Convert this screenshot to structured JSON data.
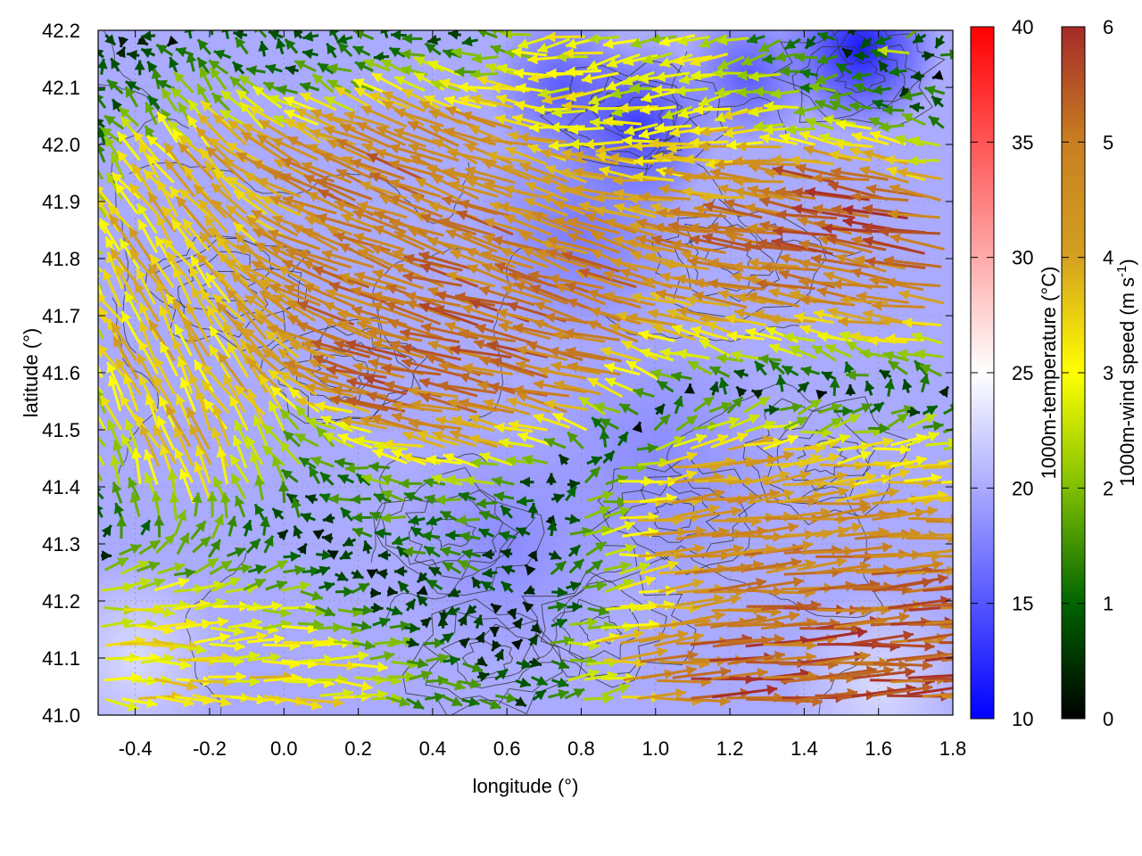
{
  "chart_data": {
    "type": "vector-field",
    "xlabel": "longitude (°)",
    "ylabel": "latitude (°)",
    "xlim": [
      -0.5,
      1.8
    ],
    "ylim": [
      41.0,
      42.2
    ],
    "xticks": [
      -0.4,
      -0.2,
      0.0,
      0.2,
      0.4,
      0.6,
      0.8,
      1.0,
      1.2,
      1.4,
      1.6,
      1.8
    ],
    "xtick_labels": [
      "-0.4",
      "-0.2",
      "0.0",
      "0.2",
      "0.4",
      "0.6",
      "0.8",
      "1.0",
      "1.2",
      "1.4",
      "1.6",
      "1.8"
    ],
    "yticks": [
      41.0,
      41.1,
      41.2,
      41.3,
      41.4,
      41.5,
      41.6,
      41.7,
      41.8,
      41.9,
      42.0,
      42.1,
      42.2
    ],
    "ytick_labels": [
      "41.0",
      "41.1",
      "41.2",
      "41.3",
      "41.4",
      "41.5",
      "41.6",
      "41.7",
      "41.8",
      "41.9",
      "42.0",
      "42.1",
      "42.2"
    ],
    "grid": true,
    "colorbars": [
      {
        "label": "1000m-temperature (°C)",
        "range": [
          10,
          40
        ],
        "ticks": [
          10,
          15,
          20,
          25,
          30,
          35,
          40
        ],
        "tick_labels": [
          "10",
          "15",
          "20",
          "25",
          "30",
          "35",
          "40"
        ],
        "colors": [
          "#0000ff",
          "#ffffff",
          "#ff0000"
        ]
      },
      {
        "label": "1000m-wind speed (m s",
        "label_sup": "-1",
        "label_tail": ")",
        "range": [
          0,
          6
        ],
        "ticks": [
          0,
          1,
          2,
          3,
          4,
          5,
          6
        ],
        "tick_labels": [
          "0",
          "1",
          "2",
          "3",
          "4",
          "5",
          "6"
        ],
        "colors": [
          "#000000",
          "#006400",
          "#7fbf00",
          "#ffff00",
          "#d4a020",
          "#c87f20",
          "#a52a2a"
        ]
      }
    ],
    "temperature_field": [
      {
        "lon": 1.55,
        "lat": 42.17,
        "value": 11,
        "spread": 0.22
      },
      {
        "lon": 0.95,
        "lat": 42.03,
        "value": 13,
        "spread": 0.22
      },
      {
        "lon": 0.75,
        "lat": 42.1,
        "value": 15,
        "spread": 0.2
      },
      {
        "lon": 1.25,
        "lat": 42.12,
        "value": 15,
        "spread": 0.18
      },
      {
        "lon": 0.8,
        "lat": 41.85,
        "value": 17,
        "spread": 0.3
      },
      {
        "lon": 1.0,
        "lat": 41.45,
        "value": 18,
        "spread": 0.35
      },
      {
        "lon": 0.6,
        "lat": 41.3,
        "value": 18,
        "spread": 0.3
      },
      {
        "lon": -0.4,
        "lat": 41.1,
        "value": 23,
        "spread": 0.25
      },
      {
        "lon": 1.6,
        "lat": 41.05,
        "value": 23,
        "spread": 0.25
      }
    ],
    "background_temperature": 20,
    "wind_regions": [
      {
        "lon": [
          -0.5,
          0.2
        ],
        "lat": [
          41.0,
          41.2
        ],
        "u": 3.5,
        "v": -0.3
      },
      {
        "lon": [
          0.0,
          0.9
        ],
        "lat": [
          41.7,
          42.0
        ],
        "u": -4.5,
        "v": 1.8
      },
      {
        "lon": [
          0.3,
          0.8
        ],
        "lat": [
          41.55,
          41.7
        ],
        "u": -5.2,
        "v": 1.0
      },
      {
        "lon": [
          -0.4,
          -0.1
        ],
        "lat": [
          41.4,
          41.9
        ],
        "u": -1.5,
        "v": 3.2
      },
      {
        "lon": [
          1.3,
          1.8
        ],
        "lat": [
          41.6,
          41.9
        ],
        "u": -5.5,
        "v": 0.8
      },
      {
        "lon": [
          0.9,
          1.3
        ],
        "lat": [
          41.25,
          41.4
        ],
        "u": 5.0,
        "v": 0.5
      },
      {
        "lon": [
          0.8,
          1.2
        ],
        "lat": [
          42.0,
          42.2
        ],
        "u": -2.5,
        "v": -0.8
      },
      {
        "lon": [
          1.0,
          1.8
        ],
        "lat": [
          41.0,
          41.2
        ],
        "u": 5.5,
        "v": 0.3
      },
      {
        "lon": [
          0.2,
          0.8
        ],
        "lat": [
          41.2,
          41.35
        ],
        "u": -1.5,
        "v": 0.2
      },
      {
        "lon": [
          1.3,
          1.8
        ],
        "lat": [
          41.3,
          41.55
        ],
        "u": 4.5,
        "v": 0.4
      }
    ],
    "contours": "terrain elevation (unlabeled)",
    "contour_centers": [
      {
        "lon": 0.95,
        "lat": 42.05
      },
      {
        "lon": 1.55,
        "lat": 42.12
      },
      {
        "lon": 0.45,
        "lat": 41.32
      },
      {
        "lon": 0.55,
        "lat": 41.1
      },
      {
        "lon": 0.85,
        "lat": 41.15
      },
      {
        "lon": 1.05,
        "lat": 41.35
      },
      {
        "lon": -0.15,
        "lat": 41.75
      },
      {
        "lon": 0.15,
        "lat": 41.6
      },
      {
        "lon": 1.45,
        "lat": 41.45
      },
      {
        "lon": 1.2,
        "lat": 41.8
      }
    ]
  }
}
